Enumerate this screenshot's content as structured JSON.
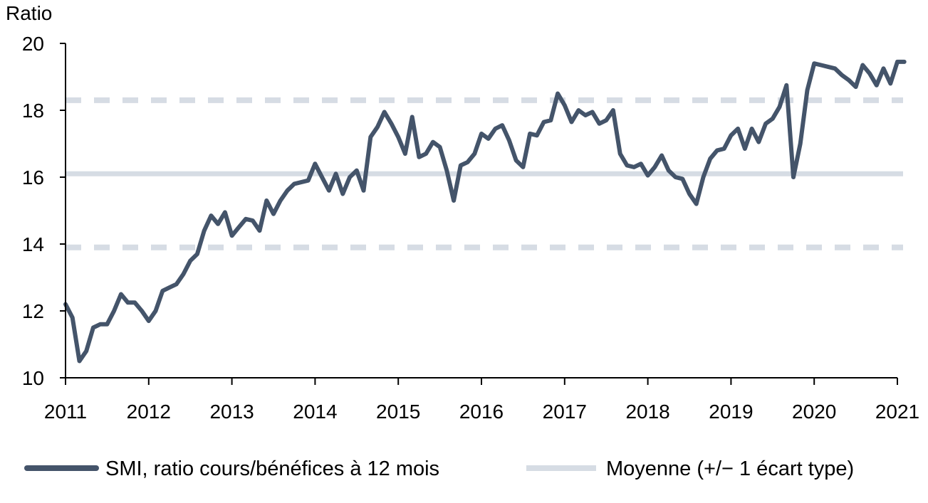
{
  "chart_data": {
    "type": "line",
    "ylabel": "Ratio",
    "xlabel": "",
    "ylim": [
      10,
      20
    ],
    "xlim": [
      2011,
      2021
    ],
    "yticks": [
      10,
      12,
      14,
      16,
      18,
      20
    ],
    "xticks": [
      "2011",
      "2012",
      "2013",
      "2014",
      "2015",
      "2016",
      "2017",
      "2018",
      "2019",
      "2020",
      "2021"
    ],
    "grid": false,
    "legend_position": "bottom",
    "reference_lines": {
      "name": "Moyenne (+/− 1 écart type)",
      "color": "#d6dce4",
      "mean": 16.1,
      "upper": 18.3,
      "lower": 13.9
    },
    "series": [
      {
        "name": "SMI, ratio cours/bénéfices à 12 mois",
        "color": "#44546a",
        "x": [
          2011.0,
          2011.083,
          2011.167,
          2011.25,
          2011.333,
          2011.417,
          2011.5,
          2011.583,
          2011.667,
          2011.75,
          2011.833,
          2011.917,
          2012.0,
          2012.083,
          2012.167,
          2012.25,
          2012.333,
          2012.417,
          2012.5,
          2012.583,
          2012.667,
          2012.75,
          2012.833,
          2012.917,
          2013.0,
          2013.083,
          2013.167,
          2013.25,
          2013.333,
          2013.417,
          2013.5,
          2013.583,
          2013.667,
          2013.75,
          2013.833,
          2013.917,
          2014.0,
          2014.083,
          2014.167,
          2014.25,
          2014.333,
          2014.417,
          2014.5,
          2014.583,
          2014.667,
          2014.75,
          2014.833,
          2014.917,
          2015.0,
          2015.083,
          2015.167,
          2015.25,
          2015.333,
          2015.417,
          2015.5,
          2015.583,
          2015.667,
          2015.75,
          2015.833,
          2015.917,
          2016.0,
          2016.083,
          2016.167,
          2016.25,
          2016.333,
          2016.417,
          2016.5,
          2016.583,
          2016.667,
          2016.75,
          2016.833,
          2016.917,
          2017.0,
          2017.083,
          2017.167,
          2017.25,
          2017.333,
          2017.417,
          2017.5,
          2017.583,
          2017.667,
          2017.75,
          2017.833,
          2017.917,
          2018.0,
          2018.083,
          2018.167,
          2018.25,
          2018.333,
          2018.417,
          2018.5,
          2018.583,
          2018.667,
          2018.75,
          2018.833,
          2018.917,
          2019.0,
          2019.083,
          2019.167,
          2019.25,
          2019.333,
          2019.417,
          2019.5,
          2019.583,
          2019.667,
          2019.75,
          2019.833,
          2019.917,
          2020.0,
          2020.083,
          2020.167,
          2020.25,
          2020.333,
          2020.417,
          2020.5,
          2020.583,
          2020.667,
          2020.75,
          2020.833,
          2020.917,
          2021.0,
          2021.083
        ],
        "values": [
          12.2,
          11.8,
          10.5,
          10.8,
          11.5,
          11.6,
          11.6,
          12.0,
          12.5,
          12.25,
          12.25,
          12.0,
          11.7,
          12.0,
          12.6,
          12.7,
          12.8,
          13.1,
          13.5,
          13.7,
          14.4,
          14.85,
          14.6,
          14.95,
          14.25,
          14.5,
          14.75,
          14.7,
          14.4,
          15.3,
          14.9,
          15.3,
          15.6,
          15.8,
          15.85,
          15.9,
          16.4,
          16.0,
          15.6,
          16.1,
          15.5,
          16.0,
          16.2,
          15.6,
          17.2,
          17.5,
          17.95,
          17.6,
          17.2,
          16.7,
          17.8,
          16.6,
          16.7,
          17.05,
          16.9,
          16.2,
          15.3,
          16.35,
          16.45,
          16.7,
          17.3,
          17.15,
          17.45,
          17.55,
          17.1,
          16.5,
          16.3,
          17.3,
          17.25,
          17.65,
          17.7,
          18.5,
          18.15,
          17.65,
          18.0,
          17.85,
          17.95,
          17.6,
          17.7,
          18.0,
          16.7,
          16.35,
          16.3,
          16.4,
          16.05,
          16.3,
          16.65,
          16.2,
          16.0,
          15.95,
          15.5,
          15.2,
          16.0,
          16.55,
          16.8,
          16.85,
          17.25,
          17.45,
          16.85,
          17.45,
          17.05,
          17.6,
          17.75,
          18.1,
          18.75,
          16.0,
          17.0,
          18.6,
          19.4,
          19.35,
          19.3,
          19.25,
          19.05,
          18.9,
          18.7,
          19.35,
          19.1,
          18.75,
          19.25,
          18.8,
          19.45,
          19.45
        ]
      }
    ]
  }
}
